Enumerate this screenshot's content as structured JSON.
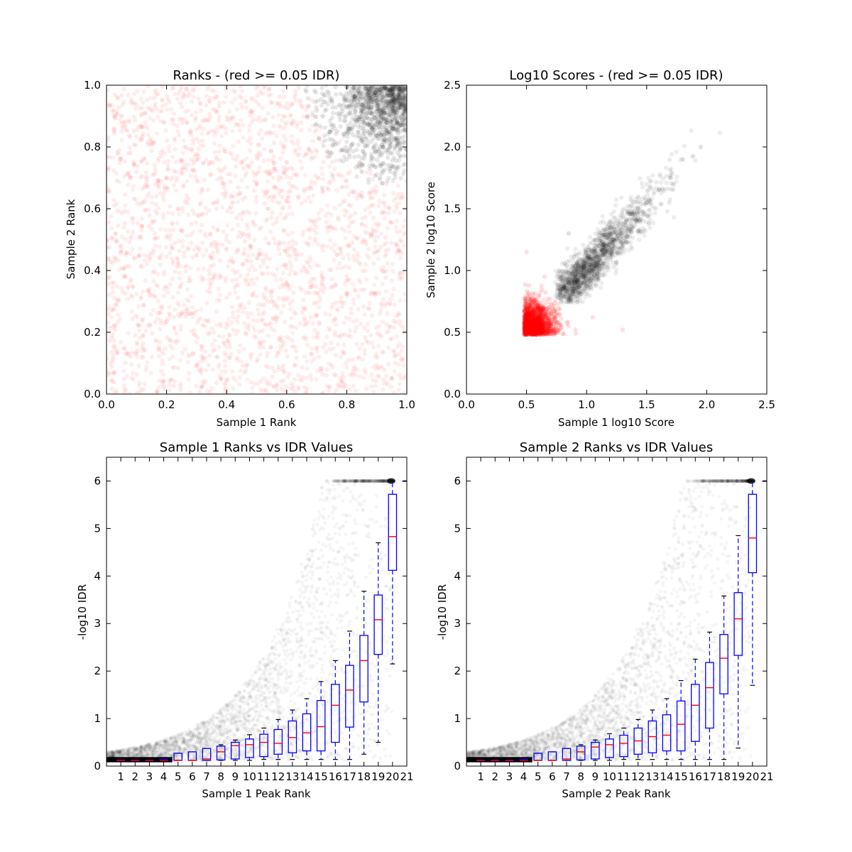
{
  "chart_data": [
    {
      "type": "scatter",
      "title": "Ranks - (red >= 0.05 IDR)",
      "xlabel": "Sample 1 Rank",
      "ylabel": "Sample 2 Rank",
      "xlim": [
        0,
        1.0
      ],
      "ylim": [
        0,
        1.0
      ],
      "xticks": [
        "0.0",
        "0.2",
        "0.4",
        "0.6",
        "0.8",
        "1.0"
      ],
      "yticks": [
        "0.0",
        "0.2",
        "0.4",
        "0.6",
        "0.8",
        "1.0"
      ],
      "series": [
        {
          "color": "#ff0000",
          "description_values": {
            "x_range": [
              0,
              1
            ],
            "y_range": [
              0,
              1
            ]
          },
          "points": [
            [
              0.05,
              0.9
            ],
            [
              0.12,
              0.12
            ],
            [
              0.25,
              0.26
            ],
            [
              0.3,
              0.45
            ],
            [
              0.42,
              0.62
            ],
            [
              0.55,
              0.3
            ],
            [
              0.7,
              0.15
            ],
            [
              0.85,
              0.55
            ],
            [
              0.95,
              0.05
            ],
            [
              0.6,
              0.75
            ],
            [
              0.2,
              0.7
            ],
            [
              0.38,
              0.05
            ]
          ]
        },
        {
          "color": "#000000",
          "points": [
            [
              0.98,
              0.98
            ],
            [
              0.9,
              0.95
            ],
            [
              0.95,
              0.88
            ],
            [
              0.8,
              0.85
            ],
            [
              0.72,
              0.9
            ],
            [
              0.85,
              0.72
            ],
            [
              0.92,
              0.8
            ],
            [
              0.75,
              0.78
            ]
          ]
        }
      ],
      "grid": false
    },
    {
      "type": "scatter",
      "title": "Log10 Scores - (red >= 0.05 IDR)",
      "xlabel": "Sample 1 log10 Score",
      "ylabel": "Sample 2 log10 Score",
      "xlim": [
        0,
        2.5
      ],
      "ylim": [
        0,
        2.5
      ],
      "xticks": [
        "0.0",
        "0.5",
        "1.0",
        "1.5",
        "2.0",
        "2.5"
      ],
      "yticks": [
        "0.0",
        "0.5",
        "1.0",
        "1.5",
        "2.0",
        "2.5"
      ],
      "series": [
        {
          "color": "#ff0000",
          "points": [
            [
              0.5,
              0.5
            ],
            [
              0.6,
              0.6
            ],
            [
              0.55,
              0.75
            ],
            [
              0.7,
              0.55
            ],
            [
              0.5,
              1.15
            ],
            [
              0.65,
              0.95
            ],
            [
              0.85,
              0.55
            ],
            [
              1.05,
              0.62
            ],
            [
              1.3,
              0.52
            ]
          ]
        },
        {
          "color": "#000000",
          "points": [
            [
              0.8,
              0.85
            ],
            [
              0.9,
              1.0
            ],
            [
              1.0,
              1.1
            ],
            [
              1.1,
              1.2
            ],
            [
              1.2,
              1.3
            ],
            [
              1.3,
              1.35
            ],
            [
              1.4,
              1.45
            ],
            [
              1.5,
              1.55
            ],
            [
              1.6,
              1.65
            ],
            [
              1.7,
              1.75
            ],
            [
              1.8,
              1.9
            ],
            [
              1.95,
              2.0
            ],
            [
              0.85,
              1.3
            ]
          ]
        }
      ],
      "grid": false
    },
    {
      "type": "box",
      "title": "Sample 1 Ranks vs IDR Values",
      "xlabel": "Sample 1 Peak Rank",
      "ylabel": "-log10 IDR",
      "xlim": [
        0,
        21
      ],
      "ylim": [
        0,
        6.5
      ],
      "xticks": [
        "1",
        "2",
        "3",
        "4",
        "5",
        "6",
        "7",
        "8",
        "9",
        "10",
        "11",
        "12",
        "13",
        "14",
        "15",
        "16",
        "17",
        "18",
        "19",
        "20",
        "21"
      ],
      "yticks": [
        "0",
        "1",
        "2",
        "3",
        "4",
        "5",
        "6"
      ],
      "boxes": [
        {
          "x": 1,
          "q1": 0.12,
          "median": 0.12,
          "q3": 0.12,
          "whislo": 0.12,
          "whishi": 0.12
        },
        {
          "x": 2,
          "q1": 0.12,
          "median": 0.12,
          "q3": 0.12,
          "whislo": 0.12,
          "whishi": 0.12
        },
        {
          "x": 3,
          "q1": 0.12,
          "median": 0.12,
          "q3": 0.12,
          "whislo": 0.12,
          "whishi": 0.12
        },
        {
          "x": 4,
          "q1": 0.12,
          "median": 0.12,
          "q3": 0.15,
          "whislo": 0.12,
          "whishi": 0.15
        },
        {
          "x": 5,
          "q1": 0.12,
          "median": 0.12,
          "q3": 0.27,
          "whislo": 0.12,
          "whishi": 0.27
        },
        {
          "x": 6,
          "q1": 0.12,
          "median": 0.12,
          "q3": 0.3,
          "whislo": 0.12,
          "whishi": 0.3
        },
        {
          "x": 7,
          "q1": 0.12,
          "median": 0.15,
          "q3": 0.37,
          "whislo": 0.12,
          "whishi": 0.37
        },
        {
          "x": 8,
          "q1": 0.13,
          "median": 0.3,
          "q3": 0.42,
          "whislo": 0.12,
          "whishi": 0.45
        },
        {
          "x": 9,
          "q1": 0.15,
          "median": 0.43,
          "q3": 0.5,
          "whislo": 0.12,
          "whishi": 0.55
        },
        {
          "x": 10,
          "q1": 0.18,
          "median": 0.45,
          "q3": 0.57,
          "whislo": 0.12,
          "whishi": 0.66
        },
        {
          "x": 11,
          "q1": 0.2,
          "median": 0.5,
          "q3": 0.67,
          "whislo": 0.14,
          "whishi": 0.8
        },
        {
          "x": 12,
          "q1": 0.25,
          "median": 0.48,
          "q3": 0.77,
          "whislo": 0.14,
          "whishi": 0.98
        },
        {
          "x": 13,
          "q1": 0.28,
          "median": 0.6,
          "q3": 0.95,
          "whislo": 0.14,
          "whishi": 1.18
        },
        {
          "x": 14,
          "q1": 0.32,
          "median": 0.7,
          "q3": 1.1,
          "whislo": 0.14,
          "whishi": 1.42
        },
        {
          "x": 15,
          "q1": 0.32,
          "median": 0.83,
          "q3": 1.38,
          "whislo": 0.14,
          "whishi": 1.78
        },
        {
          "x": 16,
          "q1": 0.5,
          "median": 1.28,
          "q3": 1.72,
          "whislo": 0.14,
          "whishi": 2.22
        },
        {
          "x": 17,
          "q1": 0.82,
          "median": 1.6,
          "q3": 2.12,
          "whislo": 0.14,
          "whishi": 2.84
        },
        {
          "x": 18,
          "q1": 1.35,
          "median": 2.22,
          "q3": 2.75,
          "whislo": 0.25,
          "whishi": 3.68
        },
        {
          "x": 19,
          "q1": 2.35,
          "median": 3.08,
          "q3": 3.6,
          "whislo": 0.5,
          "whishi": 4.7
        },
        {
          "x": 20,
          "q1": 4.12,
          "median": 4.83,
          "q3": 5.72,
          "whislo": 2.15,
          "whishi": 6.0
        },
        {
          "x": 21,
          "q1": 6.0,
          "median": 6.0,
          "q3": 6.0,
          "whislo": 6.0,
          "whishi": 6.0
        }
      ],
      "grid": false
    },
    {
      "type": "box",
      "title": "Sample 2 Ranks vs IDR Values",
      "xlabel": "Sample 2 Peak Rank",
      "ylabel": "-log10 IDR",
      "xlim": [
        0,
        21
      ],
      "ylim": [
        0,
        6.5
      ],
      "xticks": [
        "1",
        "2",
        "3",
        "4",
        "5",
        "6",
        "7",
        "8",
        "9",
        "10",
        "11",
        "12",
        "13",
        "14",
        "15",
        "16",
        "17",
        "18",
        "19",
        "20",
        "21"
      ],
      "yticks": [
        "0",
        "1",
        "2",
        "3",
        "4",
        "5",
        "6"
      ],
      "boxes": [
        {
          "x": 1,
          "q1": 0.12,
          "median": 0.12,
          "q3": 0.12,
          "whislo": 0.12,
          "whishi": 0.12
        },
        {
          "x": 2,
          "q1": 0.12,
          "median": 0.12,
          "q3": 0.12,
          "whislo": 0.12,
          "whishi": 0.12
        },
        {
          "x": 3,
          "q1": 0.12,
          "median": 0.12,
          "q3": 0.12,
          "whislo": 0.12,
          "whishi": 0.12
        },
        {
          "x": 4,
          "q1": 0.12,
          "median": 0.12,
          "q3": 0.15,
          "whislo": 0.12,
          "whishi": 0.15
        },
        {
          "x": 5,
          "q1": 0.12,
          "median": 0.12,
          "q3": 0.27,
          "whislo": 0.12,
          "whishi": 0.27
        },
        {
          "x": 6,
          "q1": 0.12,
          "median": 0.12,
          "q3": 0.3,
          "whislo": 0.12,
          "whishi": 0.3
        },
        {
          "x": 7,
          "q1": 0.12,
          "median": 0.15,
          "q3": 0.37,
          "whislo": 0.12,
          "whishi": 0.37
        },
        {
          "x": 8,
          "q1": 0.13,
          "median": 0.3,
          "q3": 0.42,
          "whislo": 0.12,
          "whishi": 0.45
        },
        {
          "x": 9,
          "q1": 0.15,
          "median": 0.4,
          "q3": 0.5,
          "whislo": 0.12,
          "whishi": 0.55
        },
        {
          "x": 10,
          "q1": 0.18,
          "median": 0.45,
          "q3": 0.57,
          "whislo": 0.12,
          "whishi": 0.68
        },
        {
          "x": 11,
          "q1": 0.2,
          "median": 0.48,
          "q3": 0.65,
          "whislo": 0.14,
          "whishi": 0.8
        },
        {
          "x": 12,
          "q1": 0.25,
          "median": 0.53,
          "q3": 0.8,
          "whislo": 0.14,
          "whishi": 0.98
        },
        {
          "x": 13,
          "q1": 0.28,
          "median": 0.62,
          "q3": 0.95,
          "whislo": 0.14,
          "whishi": 1.18
        },
        {
          "x": 14,
          "q1": 0.32,
          "median": 0.65,
          "q3": 1.08,
          "whislo": 0.14,
          "whishi": 1.42
        },
        {
          "x": 15,
          "q1": 0.32,
          "median": 0.88,
          "q3": 1.37,
          "whislo": 0.14,
          "whishi": 1.8
        },
        {
          "x": 16,
          "q1": 0.52,
          "median": 1.28,
          "q3": 1.72,
          "whislo": 0.14,
          "whishi": 2.25
        },
        {
          "x": 17,
          "q1": 0.8,
          "median": 1.65,
          "q3": 2.18,
          "whislo": 0.14,
          "whishi": 2.82
        },
        {
          "x": 18,
          "q1": 1.52,
          "median": 2.27,
          "q3": 2.77,
          "whislo": 0.14,
          "whishi": 3.58
        },
        {
          "x": 19,
          "q1": 2.33,
          "median": 3.1,
          "q3": 3.65,
          "whislo": 0.38,
          "whishi": 4.85
        },
        {
          "x": 20,
          "q1": 4.07,
          "median": 4.8,
          "q3": 5.72,
          "whislo": 1.7,
          "whishi": 6.0
        },
        {
          "x": 21,
          "q1": 6.0,
          "median": 6.0,
          "q3": 6.0,
          "whislo": 6.0,
          "whishi": 6.0
        }
      ],
      "grid": false
    }
  ],
  "colors": {
    "box": "#0000ff",
    "median": "#ff0000",
    "low_idr": "#ff0000",
    "high_idr": "#000000"
  }
}
